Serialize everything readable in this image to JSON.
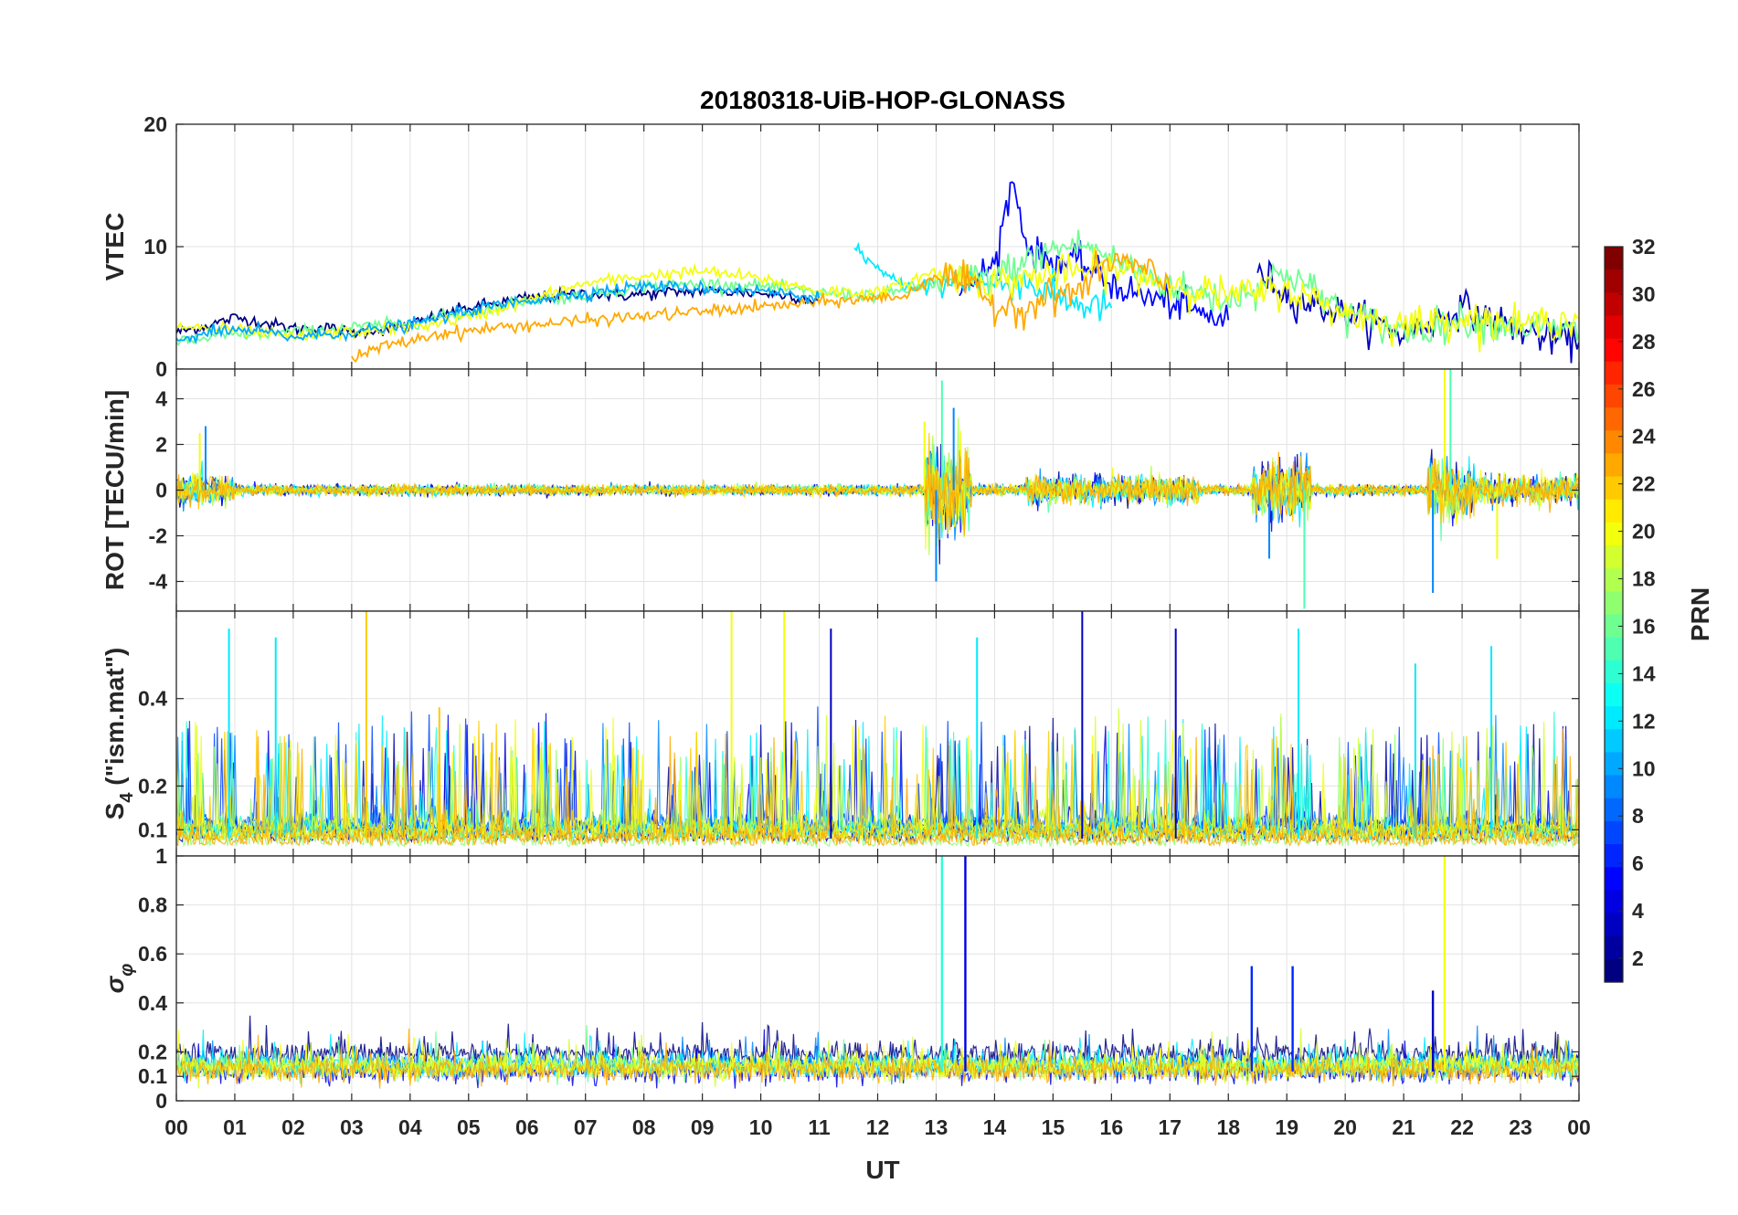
{
  "title": "20180318-UiB-HOP-GLONASS",
  "x_label": "UT",
  "x_ticks": [
    "00",
    "01",
    "02",
    "03",
    "04",
    "05",
    "06",
    "07",
    "08",
    "09",
    "10",
    "11",
    "12",
    "13",
    "14",
    "15",
    "16",
    "17",
    "18",
    "19",
    "20",
    "21",
    "22",
    "23",
    "00"
  ],
  "panels": [
    {
      "ylabel": "VTEC",
      "ylim": [
        0,
        20
      ],
      "ticks": [
        "0",
        "10",
        "20"
      ]
    },
    {
      "ylabel": "ROT [TECU/min]",
      "ylim": [
        -5.3,
        5.3
      ],
      "ticks": [
        "-4",
        "-2",
        "0",
        "2",
        "4"
      ]
    },
    {
      "ylabel_main": "S",
      "ylabel_sub": "4",
      "ylabel_rest": " (\"ism.mat\")",
      "ylim": [
        0.04,
        0.6
      ],
      "ticks": [
        "0.1",
        "0.2",
        "0.4"
      ]
    },
    {
      "ylabel_main": "σ",
      "ylabel_sub": "φ",
      "ylim": [
        0,
        1
      ],
      "ticks": [
        "0",
        "0.1",
        "0.2",
        "0.4",
        "0.6",
        "0.8",
        "1"
      ]
    }
  ],
  "colorbar": {
    "label": "PRN",
    "range": [
      1,
      32
    ],
    "ticks": [
      "2",
      "4",
      "6",
      "8",
      "10",
      "12",
      "14",
      "16",
      "18",
      "20",
      "22",
      "24",
      "26",
      "28",
      "30",
      "32"
    ],
    "colormap": "jet"
  },
  "chart_data": [
    {
      "type": "line",
      "panel": "VTEC",
      "x_unit": "hour UT",
      "ylim": [
        0,
        20
      ],
      "series": [
        {
          "prn": 1,
          "x": [
            0,
            0.5,
            1,
            1.5,
            2,
            2.5,
            3,
            3.5,
            4,
            4.5,
            5,
            5.5,
            6,
            6.5,
            7,
            7.5,
            8,
            8.5,
            9,
            9.5,
            10,
            10.5,
            11
          ],
          "y": [
            3.0,
            3.5,
            4.2,
            3.8,
            3.3,
            3.4,
            3.0,
            3.2,
            3.6,
            4.4,
            5.0,
            5.4,
            5.8,
            6.0,
            6.2,
            6.0,
            6.1,
            6.3,
            6.4,
            6.3,
            6.2,
            6.0,
            5.6
          ]
        },
        {
          "prn": 5,
          "x": [
            13.4,
            13.7,
            14.0,
            14.3,
            14.6,
            15.0,
            15.5,
            16.0,
            16.5,
            17.0,
            17.5,
            18.0
          ],
          "y": [
            6.0,
            7.5,
            8.5,
            15.5,
            9.5,
            8.8,
            8.6,
            7.0,
            6.0,
            5.5,
            4.5,
            4.0
          ]
        },
        {
          "prn": 3,
          "x": [
            18.5,
            18.8,
            19.0,
            19.5,
            20.0,
            20.5,
            21.0,
            21.5,
            22.0,
            22.5,
            23.0,
            23.5,
            24.0
          ],
          "y": [
            8.0,
            7.0,
            6.0,
            5.2,
            4.5,
            3.8,
            2.8,
            4.0,
            5.0,
            4.0,
            3.2,
            2.5,
            2.2
          ]
        },
        {
          "prn": 12,
          "x": [
            11.6,
            12.0,
            12.4,
            12.8,
            13.2,
            13.6,
            14.0,
            14.5,
            15.0,
            15.5,
            16.0
          ],
          "y": [
            10.2,
            8.0,
            7.0,
            6.6,
            7.0,
            7.4,
            6.8,
            7.2,
            6.0,
            5.2,
            5.0
          ]
        },
        {
          "prn": 16,
          "x": [
            0,
            1,
            2,
            3,
            4,
            5,
            6,
            7,
            8,
            9,
            10,
            11,
            12,
            13,
            14,
            15,
            15.5,
            16,
            17,
            18,
            19,
            20,
            21,
            22,
            23,
            24
          ],
          "y": [
            2.2,
            2.8,
            3.0,
            3.4,
            3.8,
            4.6,
            5.6,
            6.0,
            6.8,
            7.0,
            6.8,
            6.2,
            6.0,
            7.0,
            7.6,
            9.8,
            10.2,
            9.0,
            6.8,
            5.6,
            8.0,
            4.6,
            3.0,
            4.0,
            3.5,
            3.0
          ]
        },
        {
          "prn": 20,
          "x": [
            0,
            1,
            2,
            3,
            4,
            5,
            6,
            7,
            8,
            9,
            10,
            11,
            12,
            13,
            14,
            15,
            16,
            17,
            18,
            19,
            20,
            21,
            22,
            23,
            24
          ],
          "y": [
            3.5,
            3.2,
            2.6,
            3.0,
            3.4,
            4.2,
            5.6,
            7.0,
            7.6,
            8.0,
            7.4,
            6.4,
            6.2,
            8.0,
            7.0,
            7.8,
            8.2,
            7.0,
            6.0,
            6.5,
            4.6,
            3.6,
            4.2,
            3.6,
            4.2
          ]
        },
        {
          "prn": 23,
          "x": [
            3.0,
            3.5,
            4.0,
            4.5,
            5.0,
            5.5,
            12.5,
            13.0,
            13.5,
            14.0,
            14.5,
            15.0,
            15.5,
            16.0,
            16.5,
            17.0
          ],
          "y": [
            0.8,
            1.8,
            2.3,
            2.9,
            3.1,
            3.4,
            6.0,
            7.8,
            7.0,
            5.2,
            5.0,
            6.0,
            6.5,
            9.0,
            8.2,
            6.6
          ]
        },
        {
          "prn": 10,
          "x": [
            0,
            0.5,
            1,
            1.5,
            2,
            3,
            4,
            5,
            6,
            7,
            8,
            9,
            10,
            11
          ],
          "y": [
            2.4,
            2.9,
            3.2,
            3.0,
            2.6,
            3.0,
            3.6,
            4.8,
            5.6,
            6.2,
            6.8,
            6.6,
            6.4,
            5.8
          ]
        }
      ]
    },
    {
      "type": "line",
      "panel": "ROT",
      "ylim": [
        -5.3,
        5.3
      ],
      "ylabel": "ROT [TECU/min]",
      "series_note": "fluctuating about 0 TECU/min with bursts near 0.5, 13, 18.5–19.2 and 21.5–22 UT",
      "bursts": [
        {
          "prn": 9,
          "x": [
            0.5,
            13.0,
            13.3,
            18.7,
            21.5
          ],
          "y": [
            2.8,
            -4.0,
            3.6,
            -3.0,
            -4.5
          ]
        },
        {
          "prn": 15,
          "x": [
            13.1,
            19.3,
            21.8
          ],
          "y": [
            4.8,
            -5.2,
            6.0
          ]
        },
        {
          "prn": 20,
          "x": [
            0.4,
            12.8,
            21.7,
            22.6
          ],
          "y": [
            2.5,
            3.0,
            5.5,
            -3.0
          ]
        }
      ]
    },
    {
      "type": "line",
      "panel": "S4",
      "ylim": [
        0.04,
        0.6
      ],
      "series_note": "background ~0.06–0.1 with spikes; maxima near 0.58",
      "peaks": [
        {
          "prn": 12,
          "x": [
            0.9,
            1.7,
            13.7,
            19.2,
            21.2,
            22.5
          ],
          "y": [
            0.56,
            0.54,
            0.54,
            0.56,
            0.48,
            0.52
          ]
        },
        {
          "prn": 22,
          "x": [
            3.25,
            4.5,
            5.4
          ],
          "y": [
            0.6,
            0.38,
            0.3
          ]
        },
        {
          "prn": 20,
          "x": [
            9.5,
            10.4
          ],
          "y": [
            0.6,
            0.6
          ]
        },
        {
          "prn": 3,
          "x": [
            11.2,
            15.5,
            17.1
          ],
          "y": [
            0.56,
            0.6,
            0.56
          ]
        }
      ]
    },
    {
      "type": "line",
      "panel": "sigma_phi",
      "ylim": [
        0,
        1
      ],
      "series_note": "background ~0.1–0.25 with spikes",
      "peaks": [
        {
          "prn": 4,
          "x": [
            13.5
          ],
          "y": [
            1.0
          ]
        },
        {
          "prn": 14,
          "x": [
            13.1
          ],
          "y": [
            1.0
          ]
        },
        {
          "prn": 20,
          "x": [
            21.7
          ],
          "y": [
            1.0
          ]
        },
        {
          "prn": 6,
          "x": [
            18.4,
            19.1
          ],
          "y": [
            0.55,
            0.55
          ]
        },
        {
          "prn": 3,
          "x": [
            21.5
          ],
          "y": [
            0.45
          ]
        }
      ]
    }
  ]
}
